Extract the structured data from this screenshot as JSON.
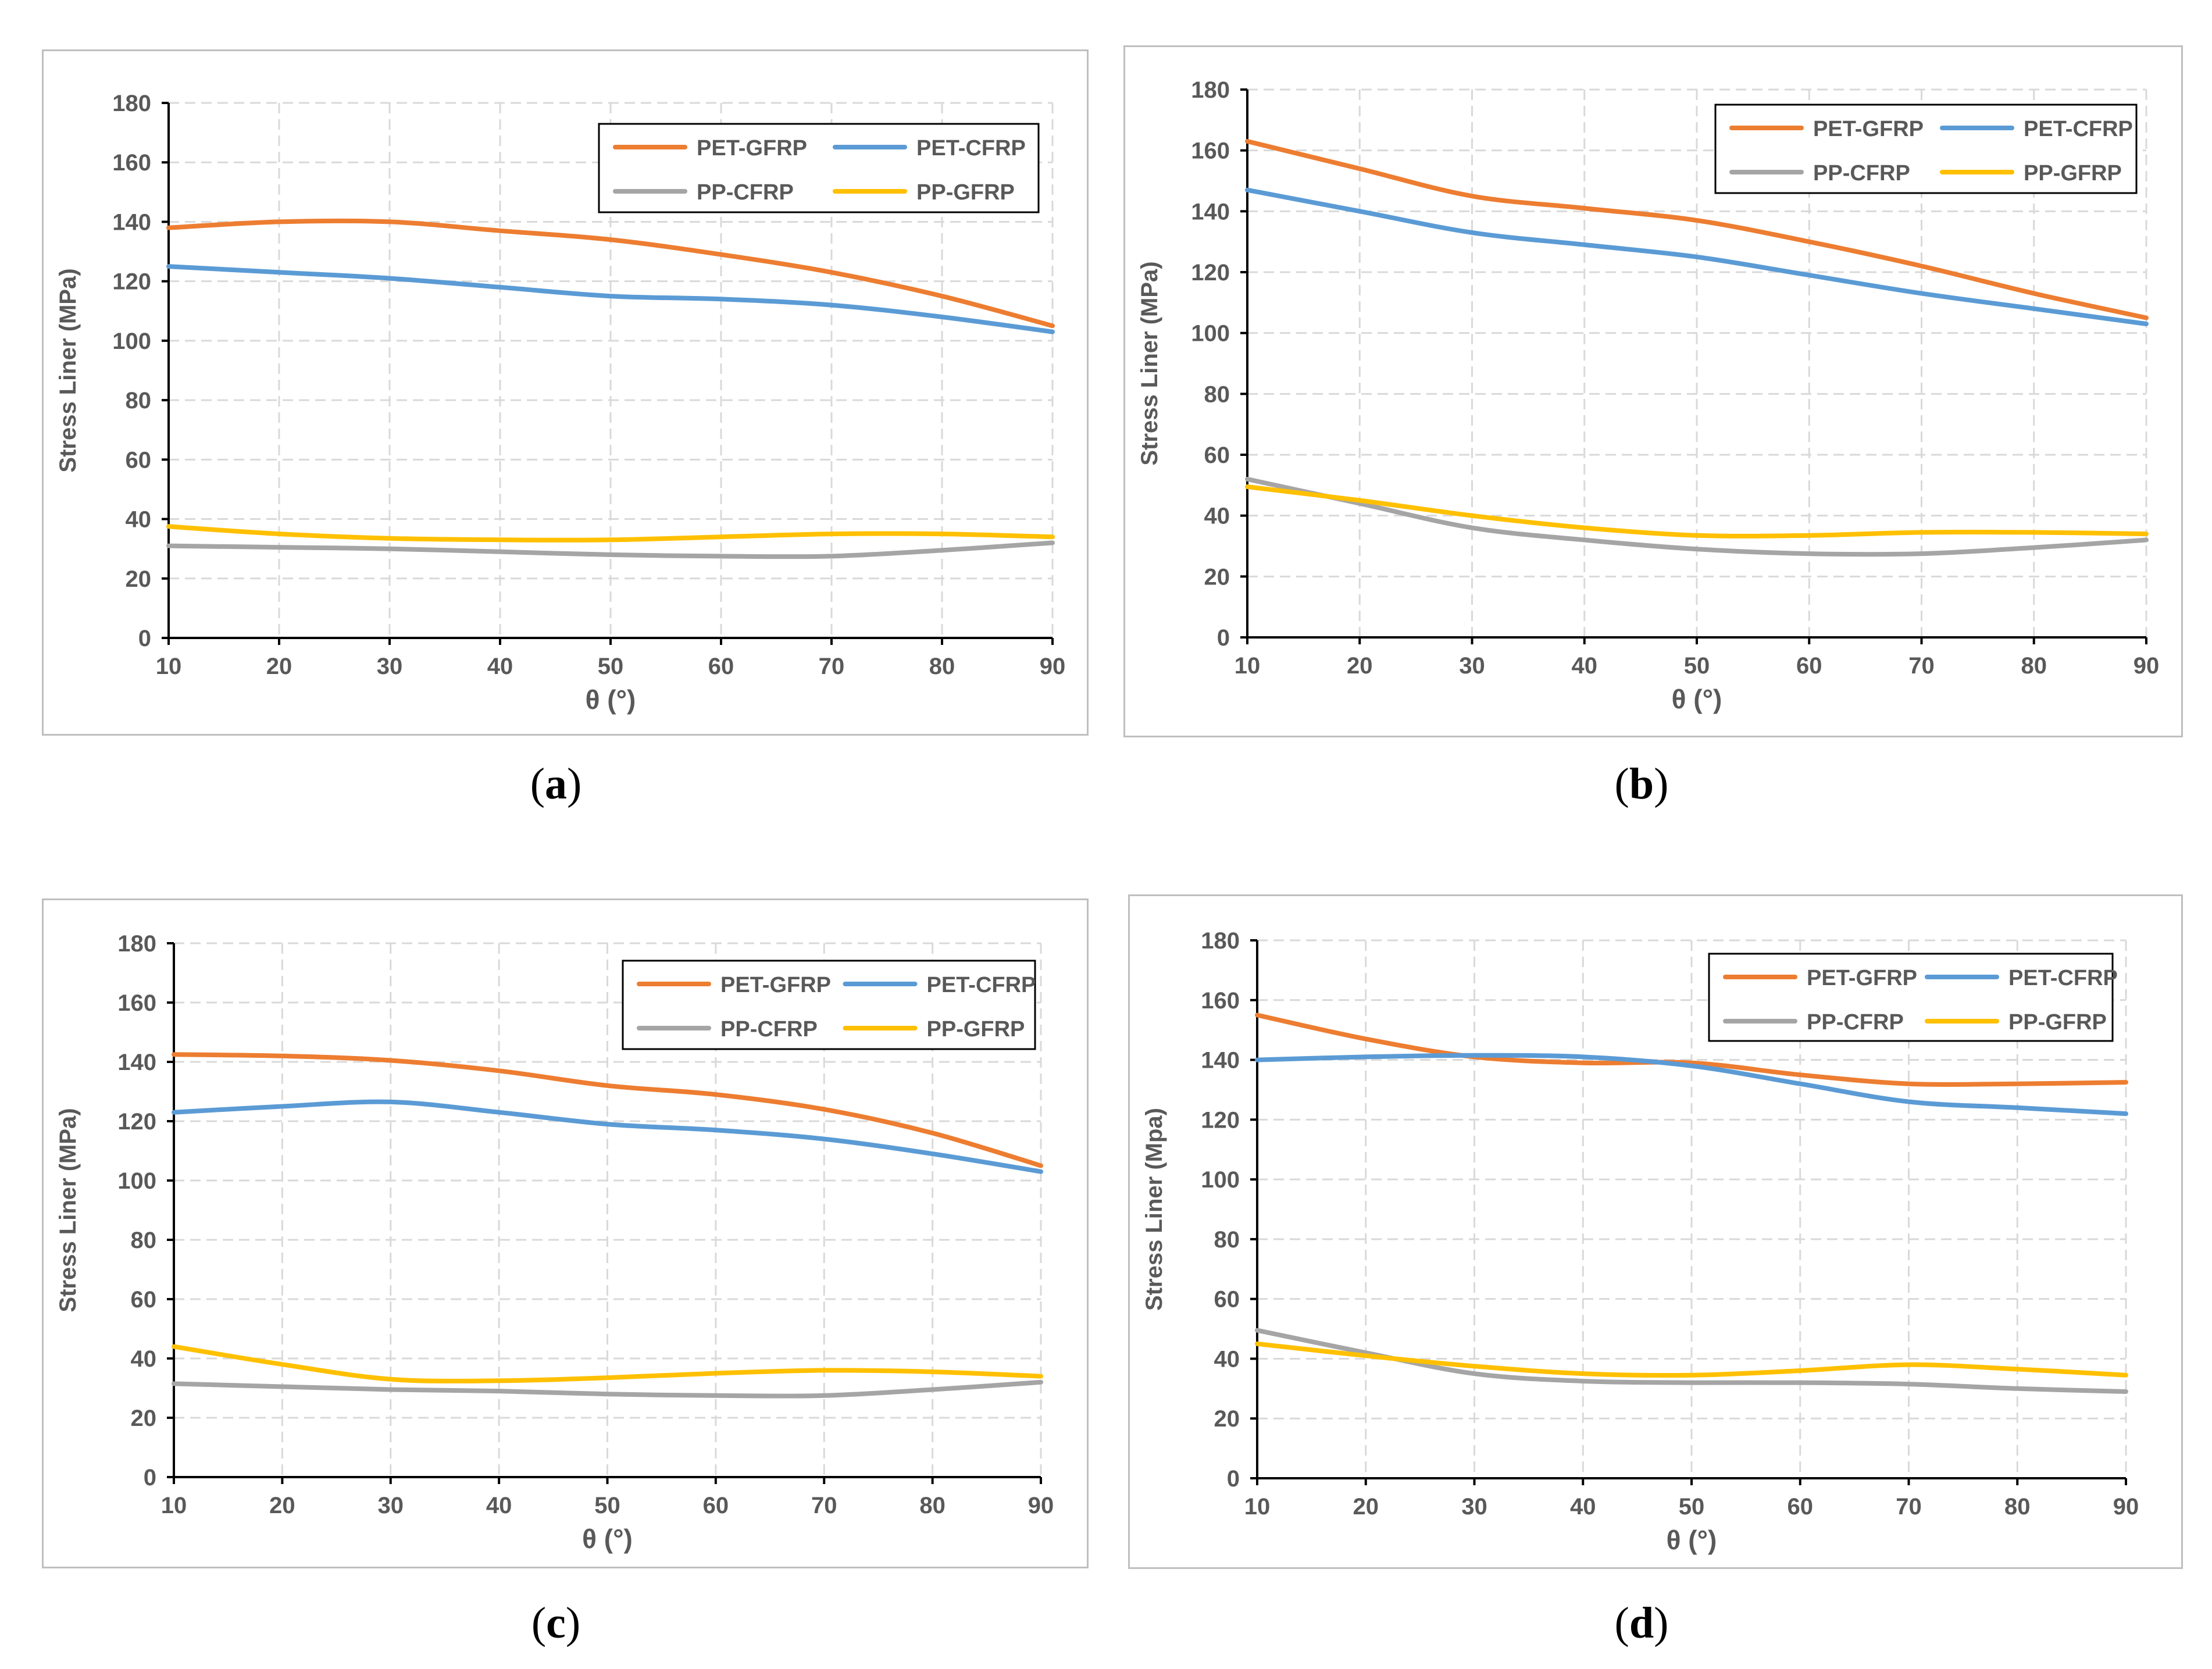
{
  "colors": {
    "pet_gfrp": "#ED7D31",
    "pet_cfrp": "#5B9BD5",
    "pp_cfrp": "#A5A5A5",
    "pp_gfrp": "#FFC000",
    "frame": "#BFBFBF",
    "grid": "#D9D9D9",
    "axis": "#000000",
    "text": "#595959"
  },
  "captions": [
    {
      "open": "(",
      "letter": "a",
      "close": ")"
    },
    {
      "open": "(",
      "letter": "b",
      "close": ")"
    },
    {
      "open": "(",
      "letter": "c",
      "close": ")"
    },
    {
      "open": "(",
      "letter": "d",
      "close": ")"
    }
  ],
  "chart_data": [
    {
      "type": "line",
      "title": "",
      "xlabel": "θ (°)",
      "ylabel": "Stress Liner (MPa)",
      "xlim": [
        10,
        90
      ],
      "ylim": [
        0,
        180
      ],
      "xticks": [
        "10",
        "20",
        "30",
        "40",
        "50",
        "60",
        "70",
        "80",
        "90"
      ],
      "yticks": [
        "0",
        "20",
        "40",
        "60",
        "80",
        "100",
        "120",
        "140",
        "160",
        "180"
      ],
      "x": [
        10,
        20,
        30,
        40,
        50,
        60,
        70,
        80,
        90
      ],
      "series": [
        {
          "name": "PET-GFRP",
          "color": "#ED7D31",
          "values": [
            138,
            140,
            140,
            137,
            134,
            129,
            123,
            115,
            105
          ]
        },
        {
          "name": "PET-CFRP",
          "color": "#5B9BD5",
          "values": [
            125,
            123,
            121,
            118,
            115,
            114,
            112,
            108,
            103
          ]
        },
        {
          "name": "PP-CFRP",
          "color": "#A5A5A5",
          "values": [
            31,
            30.5,
            30,
            29,
            28,
            27.5,
            27.5,
            29.5,
            32
          ]
        },
        {
          "name": "PP-GFRP",
          "color": "#FFC000",
          "values": [
            37.5,
            35,
            33.5,
            33,
            33,
            34,
            35,
            35,
            34
          ]
        }
      ]
    },
    {
      "type": "line",
      "title": "",
      "xlabel": "θ (°)",
      "ylabel": "Stress Liner (MPa)",
      "xlim": [
        10,
        90
      ],
      "ylim": [
        0,
        180
      ],
      "xticks": [
        "10",
        "20",
        "30",
        "40",
        "50",
        "60",
        "70",
        "80",
        "90"
      ],
      "yticks": [
        "0",
        "20",
        "40",
        "60",
        "80",
        "100",
        "120",
        "140",
        "160",
        "180"
      ],
      "x": [
        10,
        20,
        30,
        40,
        50,
        60,
        70,
        80,
        90
      ],
      "series": [
        {
          "name": "PET-GFRP",
          "color": "#ED7D31",
          "values": [
            163,
            154,
            145,
            141,
            137,
            130,
            122,
            113,
            105
          ]
        },
        {
          "name": "PET-CFRP",
          "color": "#5B9BD5",
          "values": [
            147,
            140,
            133,
            129,
            125,
            119,
            113,
            108,
            103
          ]
        },
        {
          "name": "PP-CFRP",
          "color": "#A5A5A5",
          "values": [
            52,
            44,
            36,
            32,
            29,
            27.5,
            27.5,
            29.5,
            32
          ]
        },
        {
          "name": "PP-GFRP",
          "color": "#FFC000",
          "values": [
            49.5,
            45,
            40,
            36,
            33.5,
            33.5,
            34.5,
            34.5,
            34
          ]
        }
      ]
    },
    {
      "type": "line",
      "title": "",
      "xlabel": "θ (°)",
      "ylabel": "Stress  Liner (MPa)",
      "xlim": [
        10,
        90
      ],
      "ylim": [
        0,
        180
      ],
      "xticks": [
        "10",
        "20",
        "30",
        "40",
        "50",
        "60",
        "70",
        "80",
        "90"
      ],
      "yticks": [
        "0",
        "20",
        "40",
        "60",
        "80",
        "100",
        "120",
        "140",
        "160",
        "180"
      ],
      "x": [
        10,
        20,
        30,
        40,
        50,
        60,
        70,
        80,
        90
      ],
      "series": [
        {
          "name": "PET-GFRP",
          "color": "#ED7D31",
          "values": [
            142.5,
            142,
            140.5,
            137,
            132,
            129,
            124,
            116,
            105
          ]
        },
        {
          "name": "PET-CFRP",
          "color": "#5B9BD5",
          "values": [
            123,
            125,
            126.5,
            123,
            119,
            117,
            114,
            109,
            103
          ]
        },
        {
          "name": "PP-CFRP",
          "color": "#A5A5A5",
          "values": [
            31.5,
            30.5,
            29.5,
            29,
            28,
            27.5,
            27.5,
            29.5,
            32
          ]
        },
        {
          "name": "PP-GFRP",
          "color": "#FFC000",
          "values": [
            44,
            38,
            33,
            32.5,
            33.5,
            35,
            36,
            35.5,
            34
          ]
        }
      ]
    },
    {
      "type": "line",
      "title": "",
      "xlabel": "θ (°)",
      "ylabel": "Stress  Liner (Mpa)",
      "xlim": [
        10,
        90
      ],
      "ylim": [
        0,
        180
      ],
      "xticks": [
        "10",
        "20",
        "30",
        "40",
        "50",
        "60",
        "70",
        "80",
        "90"
      ],
      "yticks": [
        "0",
        "20",
        "40",
        "60",
        "80",
        "100",
        "120",
        "140",
        "160",
        "180"
      ],
      "x": [
        10,
        20,
        30,
        40,
        50,
        60,
        70,
        80,
        90
      ],
      "series": [
        {
          "name": "PET-GFRP",
          "color": "#ED7D31",
          "values": [
            155,
            147,
            141,
            139,
            139,
            135,
            132,
            132,
            132.5
          ]
        },
        {
          "name": "PET-CFRP",
          "color": "#5B9BD5",
          "values": [
            140,
            141,
            141.5,
            141,
            138,
            132,
            126,
            124,
            122
          ]
        },
        {
          "name": "PP-CFRP",
          "color": "#A5A5A5",
          "values": [
            49.5,
            42,
            35,
            32.5,
            32,
            32,
            31.5,
            30,
            29
          ]
        },
        {
          "name": "PP-GFRP",
          "color": "#FFC000",
          "values": [
            45,
            41,
            37.5,
            35,
            34.5,
            36,
            38,
            36.5,
            34.5
          ]
        }
      ]
    }
  ]
}
